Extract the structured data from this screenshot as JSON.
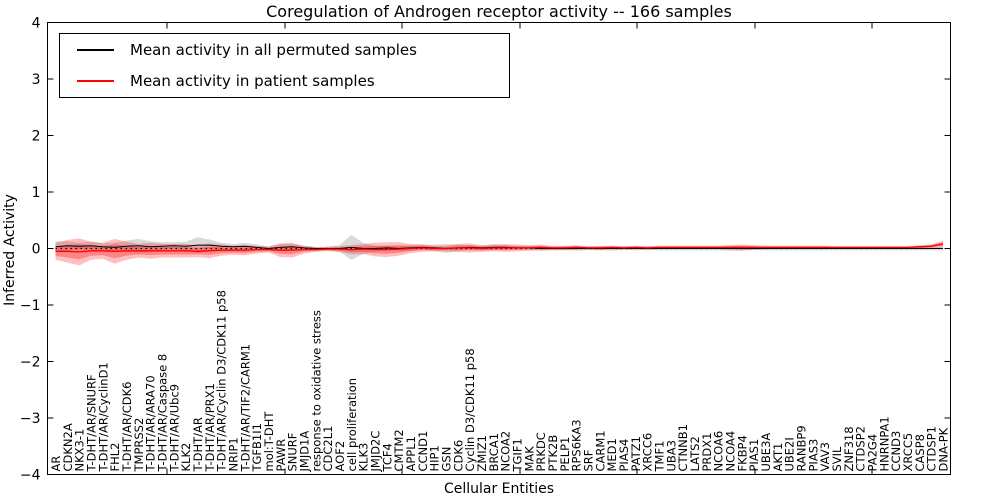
{
  "title": "Coregulation of Androgen receptor activity -- 166 samples",
  "axes": {
    "ylabel": "Inferred Activity",
    "xlabel": "Cellular Entities",
    "ytick_labels": [
      "4",
      "3",
      "2",
      "1",
      "0",
      "−1",
      "−2",
      "−3",
      "−4"
    ]
  },
  "legend": {
    "entries": [
      {
        "label": "Mean activity in all permuted samples",
        "color": "#000000"
      },
      {
        "label": "Mean activity in patient samples",
        "color": "#ff0000"
      }
    ]
  },
  "chart_data": {
    "type": "line",
    "title": "Coregulation of Androgen receptor activity -- 166 samples",
    "xlabel": "Cellular Entities",
    "ylabel": "Inferred Activity",
    "ylim": [
      -4,
      4
    ],
    "yticks": [
      4,
      3,
      2,
      1,
      0,
      -1,
      -2,
      -3,
      -4
    ],
    "grid": false,
    "zero_line": true,
    "legend_position": "upper left",
    "categories": [
      "AR",
      "CDKN2A",
      "NKX3-1",
      "T-DHT/AR/SNURF",
      "T-DHT/AR/CyclinD1",
      "FHL2",
      "T-DHT/AR/CDK6",
      "TMPRSS2",
      "T-DHT/AR/ARA70",
      "T-DHT/AR/Caspase 8",
      "T-DHT/AR/Ubc9",
      "KLK2",
      "T-DHT/AR",
      "T-DHT/AR/PRX1",
      "T-DHT/AR/Cyclin D3/CDK11 p58",
      "NRIP1",
      "T-DHT/AR/TIF2/CARM1",
      "TGFB1I1",
      "mol:T-DHT",
      "PAWR",
      "SNURF",
      "JMJD1A",
      "response to oxidative stress",
      "CDC2L1",
      "AOF2",
      "cell proliferation",
      "KLK3",
      "JMJD2C",
      "TCF4",
      "CMTM2",
      "APPL1",
      "CCND1",
      "HIP1",
      "GSN",
      "CDK6",
      "Cyclin D3/CDK11 p58",
      "ZMIZ1",
      "BRCA1",
      "NCOA2",
      "TGIF1",
      "MAK",
      "PRKDC",
      "PTK2B",
      "PELP1",
      "RPS6KA3",
      "SRF",
      "CARM1",
      "MED1",
      "PIAS4",
      "PATZ1",
      "XRCC6",
      "TMF1",
      "UBA3",
      "CTNNB1",
      "LATS2",
      "PRDX1",
      "NCOA6",
      "NCOA4",
      "FKBP4",
      "PIAS1",
      "UBE3A",
      "AKT1",
      "UBE2I",
      "RANBP9",
      "PIAS3",
      "VAV3",
      "SVIL",
      "ZNF318",
      "CTDSP2",
      "PA2G4",
      "HNRNPA1",
      "CCND3",
      "XRCC5",
      "CASP8",
      "CTDSP1",
      "DNA-PK"
    ],
    "series": [
      {
        "name": "Mean activity in all permuted samples",
        "color": "#000000",
        "band_color": "rgba(0,0,0,0.15)",
        "values": [
          0.03,
          0.05,
          0.04,
          0.05,
          0.03,
          0.02,
          0.04,
          0.05,
          0.03,
          0.04,
          0.05,
          0.04,
          0.06,
          0.06,
          0.04,
          0.03,
          0.04,
          0.02,
          0.0,
          0.02,
          0.03,
          0.01,
          0.0,
          0.0,
          0.0,
          0.02,
          0.0,
          0.0,
          0.01,
          0.0,
          0.01,
          0.02,
          0.01,
          0.0,
          0.01,
          0.02,
          0.01,
          0.02,
          0.02,
          0.01,
          0.01,
          0.0,
          0.0,
          0.0,
          0.0,
          0.0,
          0.0,
          0.0,
          0.0,
          0.0,
          0.0,
          0.0,
          0.0,
          0.0,
          0.0,
          0.0,
          0.0,
          0.0,
          0.0,
          0.0,
          0.0,
          0.0,
          0.0,
          0.0,
          0.0,
          0.0,
          0.0,
          0.0,
          0.0,
          0.0,
          0.0,
          0.0,
          0.0,
          0.0,
          0.0,
          0.0
        ],
        "band": [
          0.1,
          0.08,
          0.06,
          0.07,
          0.06,
          0.08,
          0.1,
          0.12,
          0.1,
          0.07,
          0.06,
          0.08,
          0.14,
          0.1,
          0.06,
          0.05,
          0.06,
          0.05,
          0.04,
          0.06,
          0.05,
          0.04,
          0.03,
          0.03,
          0.06,
          0.22,
          0.1,
          0.05,
          0.04,
          0.04,
          0.05,
          0.04,
          0.06,
          0.08,
          0.06,
          0.04,
          0.04,
          0.05,
          0.04,
          0.03,
          0.03,
          0.04,
          0.03,
          0.03,
          0.04,
          0.03,
          0.03,
          0.04,
          0.03,
          0.03,
          0.03,
          0.03,
          0.03,
          0.03,
          0.03,
          0.03,
          0.03,
          0.04,
          0.04,
          0.03,
          0.03,
          0.03,
          0.03,
          0.03,
          0.03,
          0.03,
          0.03,
          0.03,
          0.03,
          0.03,
          0.03,
          0.03,
          0.03,
          0.03,
          0.03,
          0.03
        ]
      },
      {
        "name": "Mean activity in patient samples",
        "color": "#ff0000",
        "band_color": "rgba(255,0,0,0.25)",
        "values": [
          -0.05,
          -0.05,
          -0.06,
          -0.04,
          -0.04,
          -0.05,
          -0.04,
          -0.04,
          -0.04,
          -0.04,
          -0.04,
          -0.04,
          -0.05,
          -0.04,
          -0.03,
          -0.03,
          -0.03,
          -0.02,
          -0.02,
          -0.03,
          -0.03,
          -0.02,
          -0.02,
          -0.01,
          -0.01,
          -0.02,
          -0.01,
          -0.02,
          -0.02,
          -0.01,
          0.0,
          0.01,
          0.0,
          0.0,
          0.01,
          0.01,
          0.0,
          0.01,
          0.01,
          0.01,
          0.01,
          0.02,
          0.01,
          0.01,
          0.02,
          0.01,
          0.01,
          0.02,
          0.01,
          0.02,
          0.01,
          0.02,
          0.02,
          0.02,
          0.02,
          0.02,
          0.02,
          0.02,
          0.02,
          0.02,
          0.02,
          0.02,
          0.02,
          0.02,
          0.02,
          0.02,
          0.02,
          0.02,
          0.02,
          0.02,
          0.02,
          0.02,
          0.02,
          0.03,
          0.04,
          0.08
        ],
        "band": [
          0.15,
          0.2,
          0.24,
          0.16,
          0.14,
          0.22,
          0.16,
          0.12,
          0.14,
          0.12,
          0.12,
          0.12,
          0.1,
          0.13,
          0.1,
          0.08,
          0.09,
          0.07,
          0.05,
          0.12,
          0.13,
          0.07,
          0.04,
          0.04,
          0.05,
          0.08,
          0.09,
          0.12,
          0.13,
          0.12,
          0.08,
          0.07,
          0.05,
          0.05,
          0.07,
          0.08,
          0.06,
          0.06,
          0.07,
          0.06,
          0.05,
          0.05,
          0.04,
          0.04,
          0.04,
          0.03,
          0.04,
          0.03,
          0.03,
          0.03,
          0.03,
          0.03,
          0.03,
          0.03,
          0.03,
          0.03,
          0.03,
          0.04,
          0.05,
          0.04,
          0.03,
          0.03,
          0.03,
          0.03,
          0.03,
          0.03,
          0.02,
          0.02,
          0.02,
          0.02,
          0.02,
          0.02,
          0.02,
          0.03,
          0.03,
          0.06
        ]
      }
    ]
  }
}
